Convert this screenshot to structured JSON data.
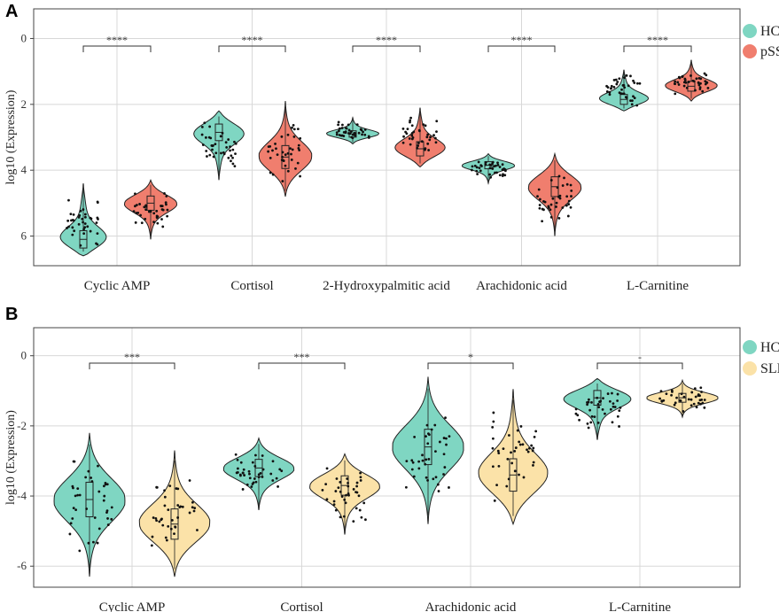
{
  "chart_data": [
    {
      "panel": "A",
      "type": "violin",
      "ylabel": "log10 (Expression)",
      "yticks": [
        0,
        2,
        4,
        6
      ],
      "y_inverted": true,
      "ylim": [
        -0.9,
        6.9
      ],
      "categories": [
        "Cyclic AMP",
        "Cortisol",
        "2-Hydroxypalmitic acid",
        "Arachidonic acid",
        "L-Carnitine"
      ],
      "series": [
        {
          "name": "HCs",
          "color": "#7fd6c2",
          "medians": [
            6.1,
            2.85,
            2.9,
            3.85,
            1.85
          ],
          "ranges": [
            [
              4.4,
              6.6
            ],
            [
              2.2,
              4.3
            ],
            [
              2.4,
              3.2
            ],
            [
              3.5,
              4.4
            ],
            [
              0.95,
              2.2
            ]
          ]
        },
        {
          "name": "pSS",
          "color": "#f07e6e",
          "medians": [
            5.0,
            3.6,
            3.35,
            4.5,
            1.45
          ],
          "ranges": [
            [
              4.3,
              6.1
            ],
            [
              1.9,
              4.8
            ],
            [
              2.1,
              3.9
            ],
            [
              3.5,
              6.0
            ],
            [
              0.65,
              1.9
            ]
          ]
        }
      ],
      "significance": [
        "****",
        "****",
        "****",
        "****",
        "****"
      ]
    },
    {
      "panel": "B",
      "type": "violin",
      "ylabel": "log10 (Expression)",
      "yticks": [
        0,
        -2,
        -4,
        -6
      ],
      "ylim": [
        -6.6,
        0.8
      ],
      "categories": [
        "Cyclic AMP",
        "Cortisol",
        "Arachidonic acid",
        "L-Carnitine"
      ],
      "series": [
        {
          "name": "HCs",
          "color": "#7fd6c2",
          "medians": [
            -4.1,
            -3.2,
            -2.6,
            -1.2
          ],
          "ranges": [
            [
              -6.3,
              -2.2
            ],
            [
              -4.4,
              -2.35
            ],
            [
              -4.8,
              -0.6
            ],
            [
              -2.4,
              -0.65
            ]
          ]
        },
        {
          "name": "SLE",
          "color": "#fbe2a8",
          "medians": [
            -4.8,
            -3.7,
            -3.4,
            -1.2
          ],
          "ranges": [
            [
              -6.3,
              -2.7
            ],
            [
              -5.1,
              -2.8
            ],
            [
              -4.8,
              -0.95
            ],
            [
              -1.75,
              -0.7
            ]
          ]
        }
      ],
      "significance": [
        "***",
        "***",
        "*",
        "-"
      ]
    }
  ]
}
